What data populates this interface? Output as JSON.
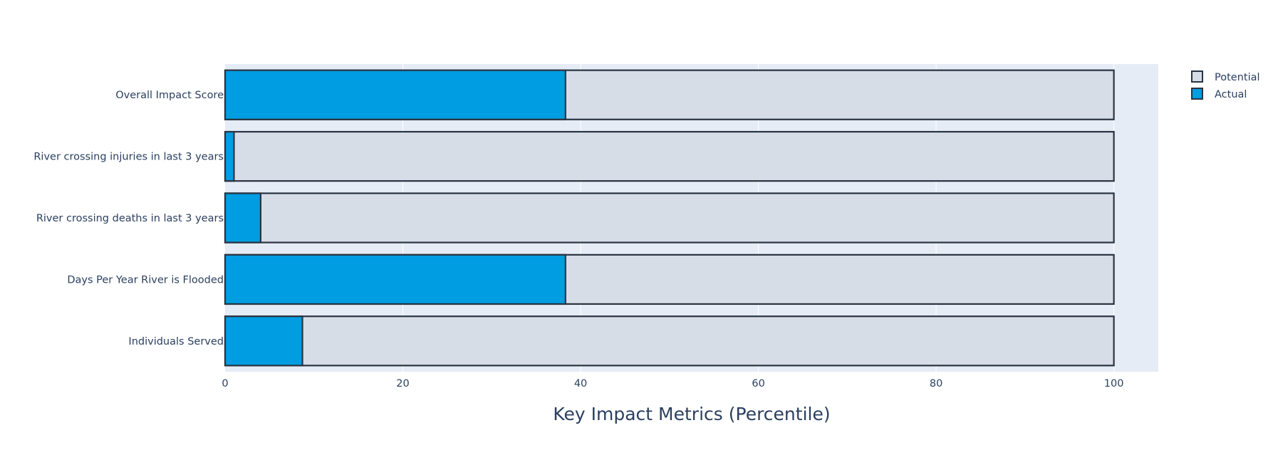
{
  "chart_data": {
    "type": "bar",
    "orientation": "horizontal",
    "barmode": "overlay",
    "categories": [
      "Overall Impact Score",
      "River crossing injuries in last 3 years",
      "River crossing deaths in last 3 years",
      "Days Per Year River is Flooded",
      "Individuals Served"
    ],
    "series": [
      {
        "name": "Potential",
        "values": [
          100,
          100,
          100,
          100,
          100
        ],
        "color": "#d6dde7",
        "line_color": "#2a3441"
      },
      {
        "name": "Actual",
        "values": [
          38.3,
          1,
          4,
          38.3,
          8.7
        ],
        "color": "#019de2",
        "line_color": "#2a3441"
      }
    ],
    "title": "",
    "xlabel": "Key Impact Metrics (Percentile)",
    "ylabel": "",
    "xlim": [
      0,
      105
    ],
    "xticks": [
      0,
      20,
      40,
      60,
      80,
      100
    ],
    "grid": true,
    "legend_position": "top-right",
    "plot_background": "#e5ecf6",
    "text_color": "#2a3f5f"
  }
}
